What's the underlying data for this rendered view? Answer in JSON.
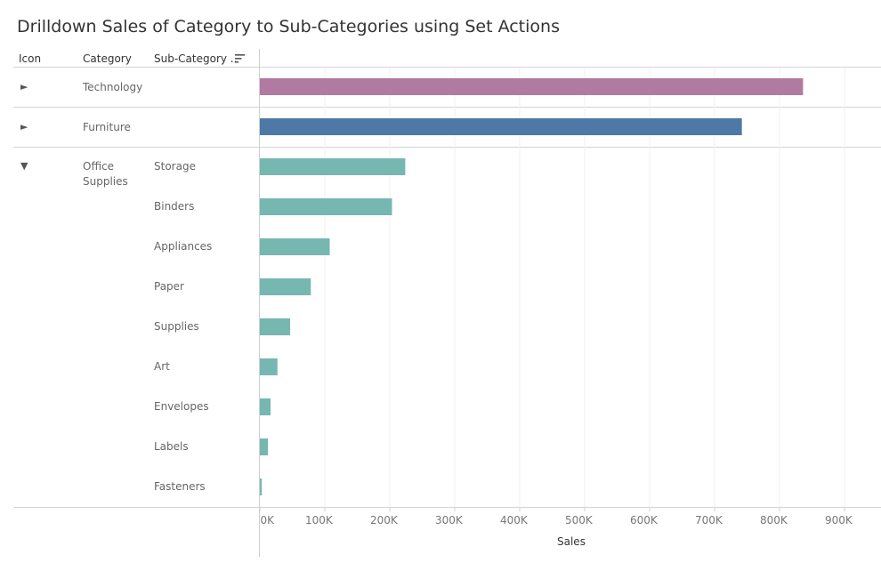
{
  "title": "Drilldown Sales of Category to Sub-Categories using Set Actions",
  "headers": {
    "icon": "Icon",
    "category": "Category",
    "subcategory": "Sub-Category .."
  },
  "icons": {
    "collapsed": "►",
    "expanded": "▼",
    "sort": "sort-descending-icon"
  },
  "rows": [
    {
      "category": "Technology",
      "expanded": false
    },
    {
      "category": "Furniture",
      "expanded": false
    },
    {
      "category": "Office Supplies",
      "expanded": true
    }
  ],
  "colors": {
    "technology": "#b07aa1",
    "furniture": "#4e79a7",
    "office_supplies": "#76b7b2"
  },
  "chart_data": {
    "type": "bar",
    "orientation": "horizontal",
    "title": "Drilldown Sales of Category to Sub-Categories using Set Actions",
    "xlabel": "Sales",
    "ylabel": "",
    "xlim": [
      0,
      960000
    ],
    "xticks": [
      0,
      100000,
      200000,
      300000,
      400000,
      500000,
      600000,
      700000,
      800000,
      900000
    ],
    "xtick_labels": [
      "0K",
      "100K",
      "200K",
      "300K",
      "400K",
      "500K",
      "600K",
      "700K",
      "800K",
      "900K"
    ],
    "grid": true,
    "bars": [
      {
        "category": "Technology",
        "sub_category": "",
        "value": 836154,
        "color": "#b07aa1"
      },
      {
        "category": "Furniture",
        "sub_category": "",
        "value": 741999,
        "color": "#4e79a7"
      },
      {
        "category": "Office Supplies",
        "sub_category": "Storage",
        "value": 223844,
        "color": "#76b7b2"
      },
      {
        "category": "Office Supplies",
        "sub_category": "Binders",
        "value": 203413,
        "color": "#76b7b2"
      },
      {
        "category": "Office Supplies",
        "sub_category": "Appliances",
        "value": 107532,
        "color": "#76b7b2"
      },
      {
        "category": "Office Supplies",
        "sub_category": "Paper",
        "value": 78479,
        "color": "#76b7b2"
      },
      {
        "category": "Office Supplies",
        "sub_category": "Supplies",
        "value": 46674,
        "color": "#76b7b2"
      },
      {
        "category": "Office Supplies",
        "sub_category": "Art",
        "value": 27119,
        "color": "#76b7b2"
      },
      {
        "category": "Office Supplies",
        "sub_category": "Envelopes",
        "value": 16476,
        "color": "#76b7b2"
      },
      {
        "category": "Office Supplies",
        "sub_category": "Labels",
        "value": 12486,
        "color": "#76b7b2"
      },
      {
        "category": "Office Supplies",
        "sub_category": "Fasteners",
        "value": 3024,
        "color": "#76b7b2"
      }
    ]
  }
}
